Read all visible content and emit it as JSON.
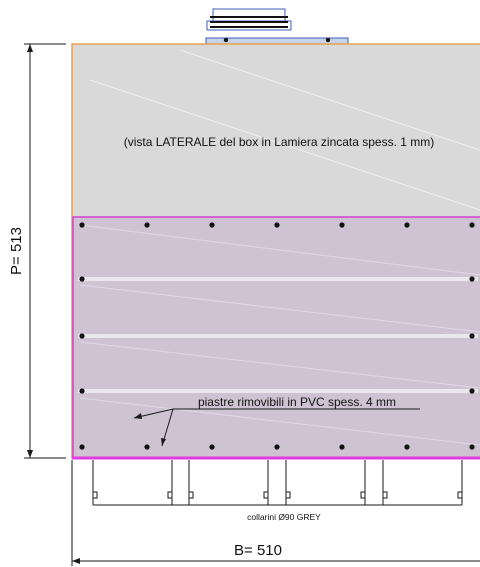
{
  "dimensions": {
    "height_label": "P= 513",
    "width_label": "B= 510"
  },
  "annotations": {
    "side_view": "(vista LATERALE del box in Lamiera zincata spess. 1 mm)",
    "plates": "piastre rimovibili in PVC spess. 4 mm",
    "collars": "collarini Ø90 GREY"
  },
  "colors": {
    "box_fill": "#d9d9d9",
    "box_edge": "#e8a14a",
    "plate_fill": "#cfc3d3",
    "plate_edge": "#d63fd6",
    "bottom_edge": "#e23ce2",
    "top_fitting": "#3c5fb8",
    "line": "#1a1a1a"
  }
}
